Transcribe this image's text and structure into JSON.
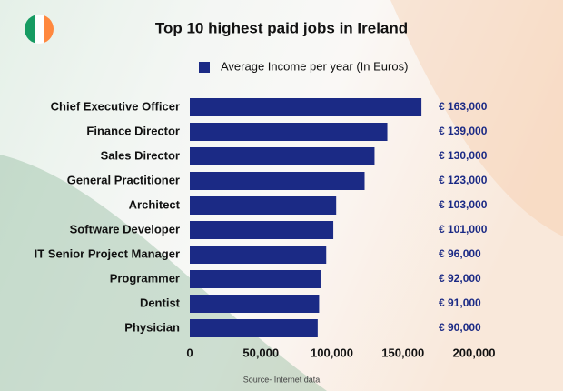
{
  "chart_data": {
    "type": "barh",
    "title": "Top 10 highest paid jobs in Ireland",
    "categories": [
      "Chief Executive Officer",
      "Finance Director",
      "Sales Director",
      "General Practitioner",
      "Architect",
      "Software Developer",
      "IT Senior Project Manager",
      "Programmer",
      "Dentist",
      "Physician"
    ],
    "series": [
      {
        "name": "Average Income per year (In Euros)",
        "color": "#1b2a85",
        "values": [
          163000,
          139000,
          130000,
          123000,
          103000,
          101000,
          96000,
          92000,
          91000,
          90000
        ],
        "value_labels": [
          "€ 163,000",
          "€ 139,000",
          "€ 130,000",
          "€ 123,000",
          "€ 103,000",
          "€ 101,000",
          "€ 96,000",
          "€ 92,000",
          "€ 91,000",
          "€ 90,000"
        ]
      }
    ],
    "xlim": [
      0,
      200000
    ],
    "xticks": [
      0,
      {
        "value": 50000,
        "label": "50,000"
      },
      {
        "value": 100000,
        "label": "100,000"
      },
      {
        "value": 150000,
        "label": "150,000"
      },
      {
        "value": 200000,
        "label": "200,000"
      }
    ],
    "legend": "top",
    "source": "Source- Internet data"
  }
}
